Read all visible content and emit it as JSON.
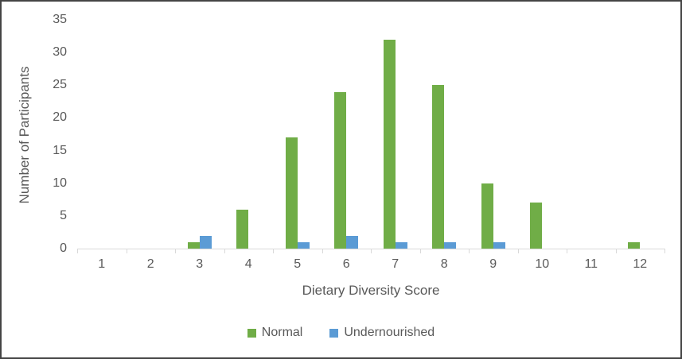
{
  "chart_data": {
    "type": "bar",
    "title": "",
    "xlabel": "Dietary Diversity Score",
    "ylabel": "Number of Participants",
    "categories": [
      "1",
      "2",
      "3",
      "4",
      "5",
      "6",
      "7",
      "8",
      "9",
      "10",
      "11",
      "12"
    ],
    "series": [
      {
        "name": "Normal",
        "color": "#70AD47",
        "values": [
          0,
          0,
          1,
          6,
          17,
          24,
          32,
          25,
          10,
          7,
          0,
          1
        ]
      },
      {
        "name": "Undernourished",
        "color": "#5B9BD5",
        "values": [
          0,
          0,
          2,
          0,
          1,
          2,
          1,
          1,
          1,
          0,
          0,
          0
        ]
      }
    ],
    "ylim": [
      0,
      35
    ],
    "yticks": [
      "0",
      "5",
      "10",
      "15",
      "20",
      "25",
      "30",
      "35"
    ],
    "grid": false,
    "legend_position": "bottom"
  },
  "colors": {
    "text": "#595959",
    "axis_line": "#d9d9d9",
    "border": "#444444",
    "normal_green": "#70AD47",
    "undernourished_blue": "#5B9BD5"
  }
}
